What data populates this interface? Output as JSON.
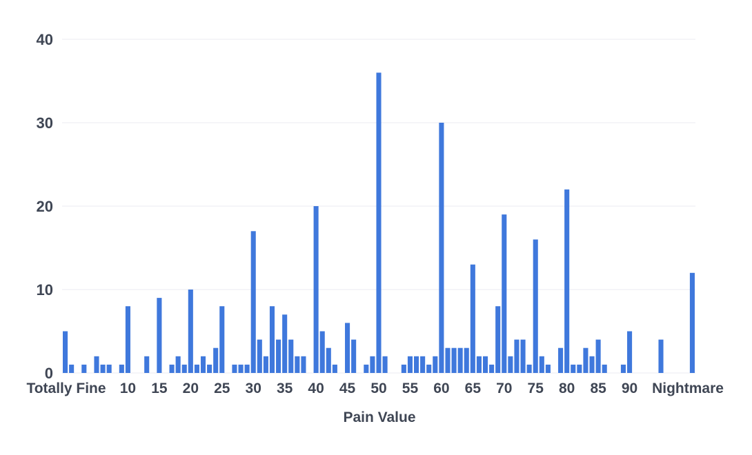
{
  "chart_data": {
    "type": "bar",
    "title": "",
    "xlabel": "Pain Value",
    "ylabel": "",
    "ylim": [
      0,
      40
    ],
    "yticks": [
      0,
      10,
      20,
      30,
      40
    ],
    "grid": true,
    "bar_color": "#3f78dc",
    "x_tick_labels": [
      {
        "x": 0,
        "label": "Totally Fine"
      },
      {
        "x": 10,
        "label": "10"
      },
      {
        "x": 15,
        "label": "15"
      },
      {
        "x": 20,
        "label": "20"
      },
      {
        "x": 25,
        "label": "25"
      },
      {
        "x": 30,
        "label": "30"
      },
      {
        "x": 35,
        "label": "35"
      },
      {
        "x": 40,
        "label": "40"
      },
      {
        "x": 45,
        "label": "45"
      },
      {
        "x": 50,
        "label": "50"
      },
      {
        "x": 55,
        "label": "55"
      },
      {
        "x": 60,
        "label": "60"
      },
      {
        "x": 65,
        "label": "65"
      },
      {
        "x": 70,
        "label": "70"
      },
      {
        "x": 75,
        "label": "75"
      },
      {
        "x": 80,
        "label": "80"
      },
      {
        "x": 85,
        "label": "85"
      },
      {
        "x": 90,
        "label": "90"
      },
      {
        "x": 100,
        "label": "Nightmare"
      }
    ],
    "x": [
      0,
      1,
      2,
      3,
      4,
      5,
      6,
      7,
      8,
      9,
      10,
      11,
      12,
      13,
      14,
      15,
      16,
      17,
      18,
      19,
      20,
      21,
      22,
      23,
      24,
      25,
      26,
      27,
      28,
      29,
      30,
      31,
      32,
      33,
      34,
      35,
      36,
      37,
      38,
      39,
      40,
      41,
      42,
      43,
      44,
      45,
      46,
      47,
      48,
      49,
      50,
      51,
      52,
      53,
      54,
      55,
      56,
      57,
      58,
      59,
      60,
      61,
      62,
      63,
      64,
      65,
      66,
      67,
      68,
      69,
      70,
      71,
      72,
      73,
      74,
      75,
      76,
      77,
      78,
      79,
      80,
      81,
      82,
      83,
      84,
      85,
      86,
      87,
      88,
      89,
      90,
      91,
      92,
      93,
      94,
      95,
      96,
      97,
      98,
      99,
      100
    ],
    "values": [
      5,
      1,
      0,
      1,
      0,
      2,
      1,
      1,
      0,
      1,
      8,
      0,
      0,
      2,
      0,
      9,
      0,
      1,
      2,
      1,
      10,
      1,
      2,
      1,
      3,
      8,
      0,
      1,
      1,
      1,
      17,
      4,
      2,
      8,
      4,
      7,
      4,
      2,
      2,
      0,
      20,
      5,
      3,
      1,
      0,
      6,
      4,
      0,
      1,
      2,
      36,
      2,
      0,
      0,
      1,
      2,
      2,
      2,
      1,
      2,
      30,
      3,
      3,
      3,
      3,
      13,
      2,
      2,
      1,
      8,
      19,
      2,
      4,
      4,
      1,
      16,
      2,
      1,
      0,
      3,
      22,
      1,
      1,
      3,
      2,
      4,
      1,
      0,
      0,
      1,
      5,
      0,
      0,
      0,
      0,
      4,
      0,
      0,
      0,
      0,
      12
    ]
  }
}
